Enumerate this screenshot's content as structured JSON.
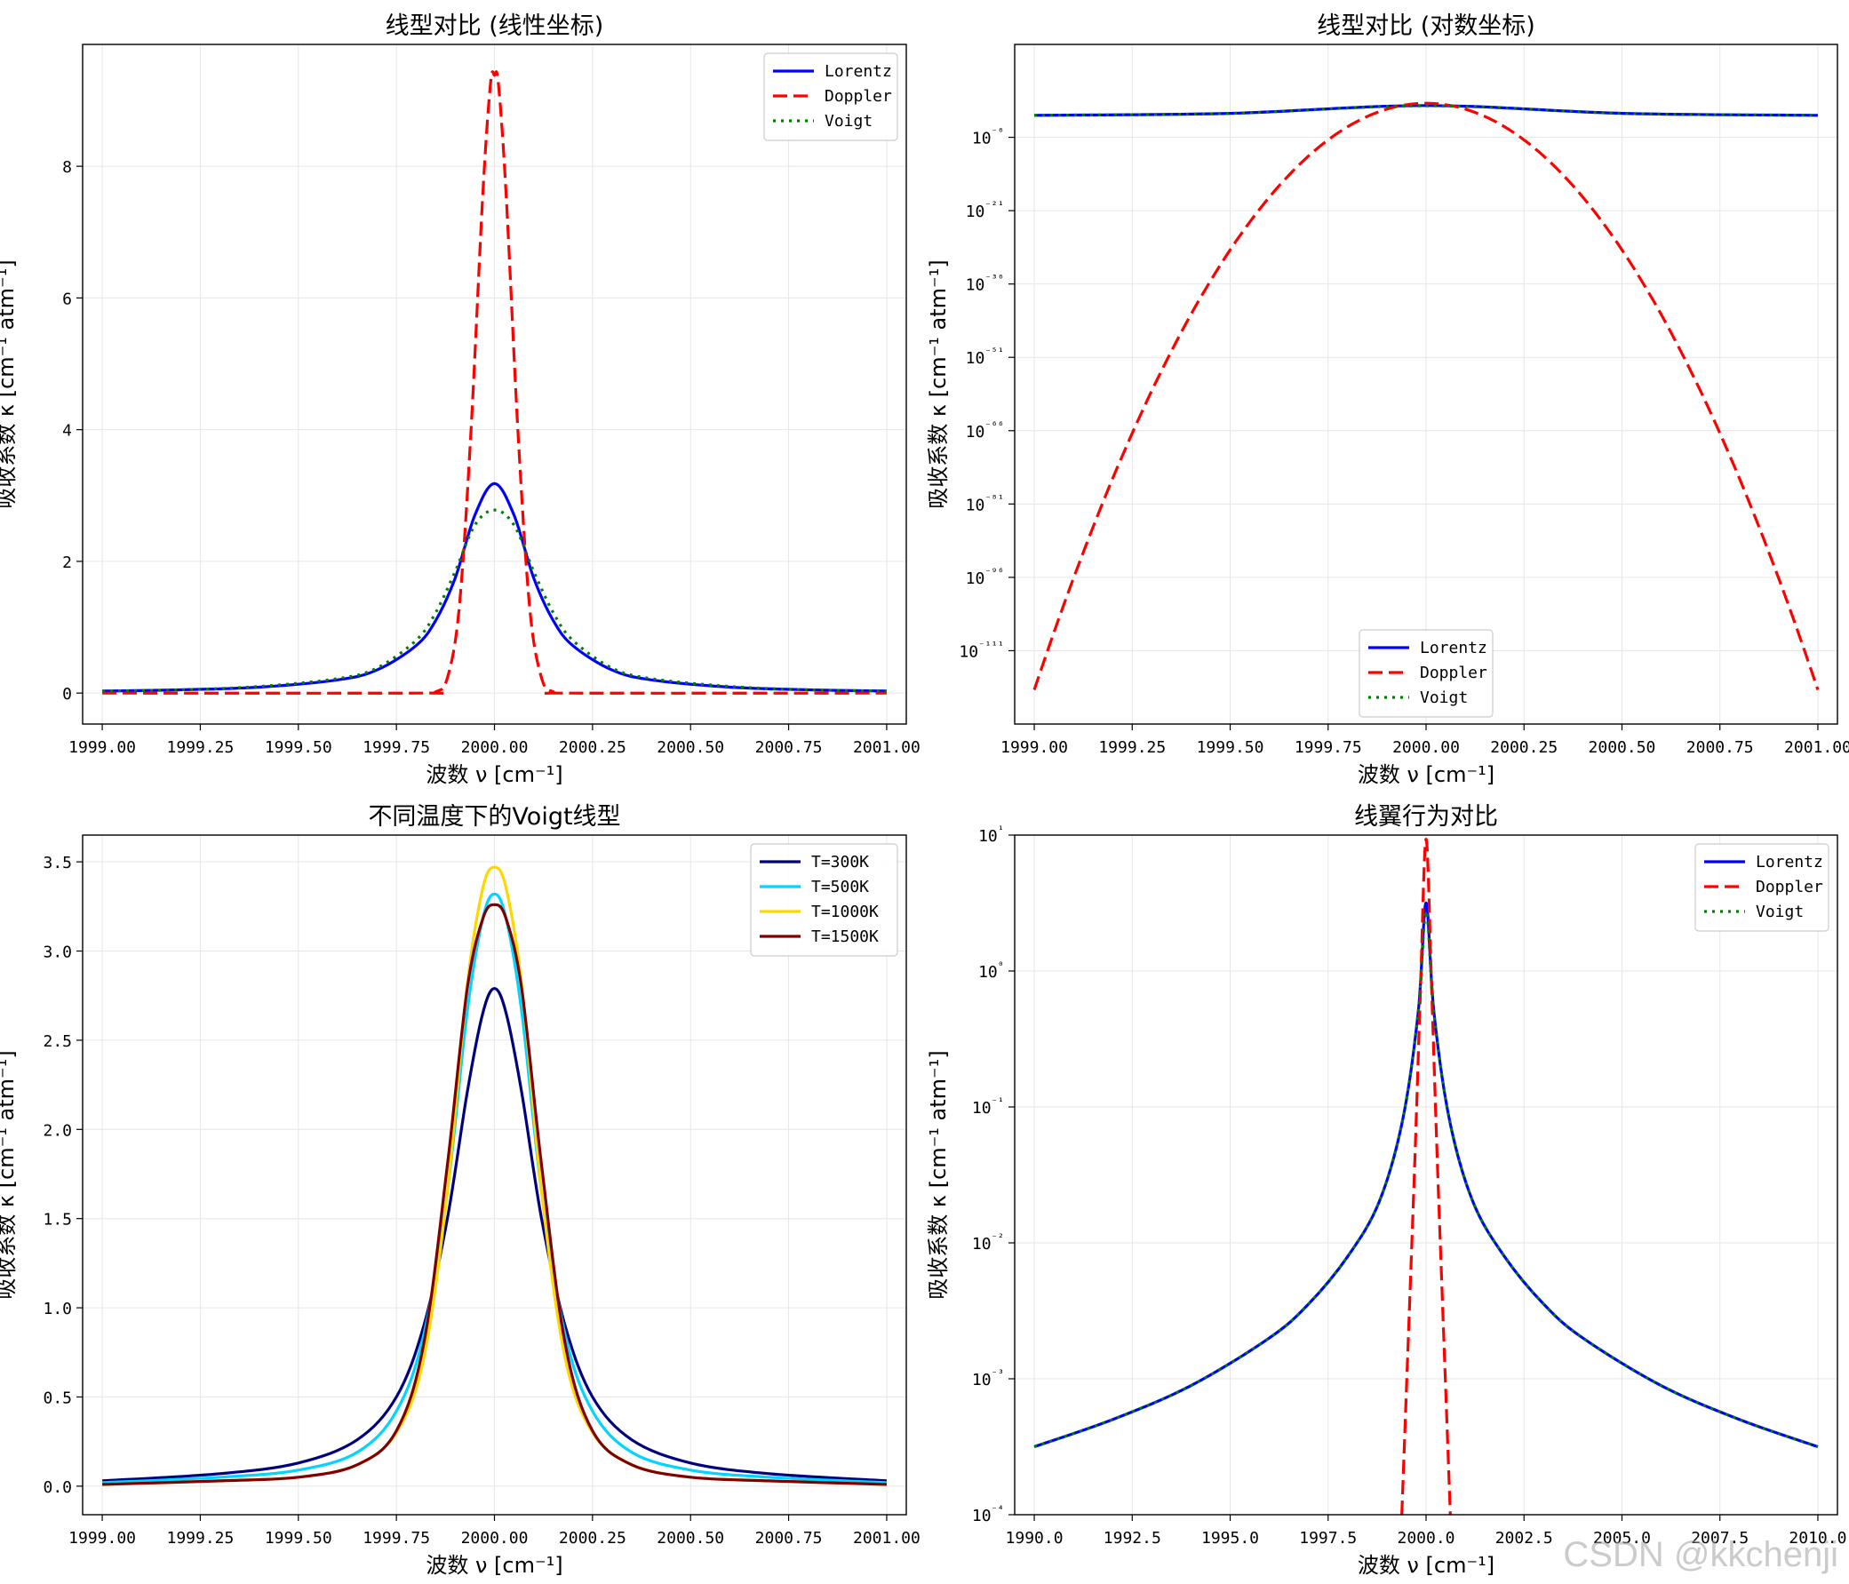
{
  "watermark": "CSDN @kkchenji",
  "colors": {
    "lorentz": "#0000ff",
    "doppler": "#ff0000",
    "voigt": "#008000",
    "T300": "#00007f",
    "T500": "#00d4ff",
    "T1000": "#ffd700",
    "T1500": "#7f0000"
  },
  "chart_data": [
    {
      "type": "line",
      "title": "线型对比 (线性坐标)",
      "xlabel": "波数 ν [cm⁻¹]",
      "ylabel": "吸收系数 κ [cm⁻¹ atm⁻¹]",
      "xlim": [
        1998.95,
        2001.05
      ],
      "ylim": [
        -0.47,
        9.85
      ],
      "yscale": "linear",
      "grid": true,
      "legend_position": "upper right",
      "xticks": [
        1999.0,
        1999.25,
        1999.5,
        1999.75,
        2000.0,
        2000.25,
        2000.5,
        2000.75,
        2001.0
      ],
      "xtick_labels": [
        "1999.00",
        "1999.25",
        "1999.50",
        "1999.75",
        "2000.00",
        "2000.25",
        "2000.50",
        "2000.75",
        "2001.00"
      ],
      "yticks": [
        0,
        2,
        4,
        6,
        8
      ],
      "ytick_labels": [
        "0",
        "2",
        "4",
        "6",
        "8"
      ],
      "series": [
        {
          "name": "Lorentz",
          "style": "solid",
          "color": "#0000ff",
          "x": [
            1999.0,
            1999.2,
            1999.4,
            1999.6,
            1999.7,
            1999.8,
            1999.85,
            1999.9,
            1999.95,
            2000.0,
            2000.05,
            2000.1,
            2000.15,
            2000.2,
            2000.3,
            2000.4,
            2000.6,
            2000.8,
            2001.0
          ],
          "y": [
            0.03,
            0.05,
            0.09,
            0.2,
            0.35,
            0.72,
            1.1,
            1.75,
            2.7,
            3.18,
            2.7,
            1.75,
            1.1,
            0.72,
            0.35,
            0.2,
            0.09,
            0.05,
            0.03
          ]
        },
        {
          "name": "Doppler",
          "style": "dashed",
          "color": "#ff0000",
          "x": [
            1999.0,
            1999.8,
            1999.85,
            1999.88,
            1999.91,
            1999.94,
            1999.97,
            1999.99,
            2000.0,
            2000.01,
            2000.03,
            2000.06,
            2000.09,
            2000.12,
            2000.15,
            2000.2,
            2001.0
          ],
          "y": [
            0,
            0,
            0.02,
            0.23,
            1.29,
            3.96,
            7.55,
            9.26,
            9.38,
            9.26,
            7.55,
            3.96,
            1.29,
            0.23,
            0.02,
            0,
            0
          ]
        },
        {
          "name": "Voigt",
          "style": "dotted",
          "color": "#008000",
          "x": [
            1999.0,
            1999.2,
            1999.4,
            1999.6,
            1999.7,
            1999.8,
            1999.85,
            1999.9,
            1999.95,
            2000.0,
            2000.05,
            2000.1,
            2000.15,
            2000.2,
            2000.3,
            2000.4,
            2000.6,
            2000.8,
            2001.0
          ],
          "y": [
            0.03,
            0.05,
            0.1,
            0.22,
            0.38,
            0.8,
            1.22,
            1.85,
            2.55,
            2.78,
            2.55,
            1.85,
            1.22,
            0.8,
            0.38,
            0.22,
            0.1,
            0.05,
            0.03
          ]
        }
      ]
    },
    {
      "type": "line",
      "title": "线型对比 (对数坐标)",
      "xlabel": "波数 ν [cm⁻¹]",
      "ylabel": "吸收系数 κ [cm⁻¹ atm⁻¹]",
      "xlim": [
        1998.95,
        2001.05
      ],
      "ylim_log10": [
        -126,
        13
      ],
      "yscale": "log",
      "grid": true,
      "legend_position": "lower center",
      "xticks": [
        1999.0,
        1999.25,
        1999.5,
        1999.75,
        2000.0,
        2000.25,
        2000.5,
        2000.75,
        2001.0
      ],
      "xtick_labels": [
        "1999.00",
        "1999.25",
        "1999.50",
        "1999.75",
        "2000.00",
        "2000.25",
        "2000.50",
        "2000.75",
        "2001.00"
      ],
      "yticks_log10": [
        -6,
        -21,
        -36,
        -51,
        -66,
        -81,
        -96,
        -111
      ],
      "ytick_bases": [
        "10",
        "10",
        "10",
        "10",
        "10",
        "10",
        "10",
        "10"
      ],
      "ytick_exps": [
        "⁻⁶",
        "⁻²¹",
        "⁻³⁶",
        "⁻⁵¹",
        "⁻⁶⁶",
        "⁻⁸¹",
        "⁻⁹⁶",
        "⁻¹¹¹"
      ],
      "series": [
        {
          "name": "Lorentz",
          "style": "solid",
          "color": "#0000ff",
          "x": [
            1999.0,
            1999.5,
            2000.0,
            2000.5,
            2001.0
          ],
          "log10_y": [
            -1.5,
            -1.1,
            0.5,
            -1.1,
            -1.5
          ]
        },
        {
          "name": "Doppler",
          "style": "parabola",
          "color": "#ff0000",
          "x": [
            1999.0,
            2000.0,
            2001.0
          ],
          "log10_y": [
            -119,
            0.97,
            -119
          ]
        },
        {
          "name": "Voigt",
          "style": "dotted",
          "color": "#008000",
          "x": [
            1999.0,
            1999.5,
            2000.0,
            2000.5,
            2001.0
          ],
          "log10_y": [
            -1.5,
            -1.1,
            0.44,
            -1.1,
            -1.5
          ]
        }
      ]
    },
    {
      "type": "line",
      "title": "不同温度下的Voigt线型",
      "xlabel": "波数 ν [cm⁻¹]",
      "ylabel": "吸收系数 κ [cm⁻¹ atm⁻¹]",
      "xlim": [
        1998.95,
        2001.05
      ],
      "ylim": [
        -0.16,
        3.65
      ],
      "yscale": "linear",
      "grid": true,
      "legend_position": "upper right",
      "xticks": [
        1999.0,
        1999.25,
        1999.5,
        1999.75,
        2000.0,
        2000.25,
        2000.5,
        2000.75,
        2001.0
      ],
      "xtick_labels": [
        "1999.00",
        "1999.25",
        "1999.50",
        "1999.75",
        "2000.00",
        "2000.25",
        "2000.50",
        "2000.75",
        "2001.00"
      ],
      "yticks": [
        0,
        0.5,
        1.0,
        1.5,
        2.0,
        2.5,
        3.0,
        3.5
      ],
      "ytick_labels": [
        "0.0",
        "0.5",
        "1.0",
        "1.5",
        "2.0",
        "2.5",
        "3.0",
        "3.5"
      ],
      "series": [
        {
          "name": "T=300K",
          "style": "solid",
          "color": "#00007f",
          "x": [
            1999.0,
            1999.3,
            1999.5,
            1999.65,
            1999.75,
            1999.82,
            1999.88,
            1999.93,
            1999.97,
            2000.0,
            2000.03,
            2000.07,
            2000.12,
            2000.18,
            2000.25,
            2000.35,
            2000.5,
            2000.7,
            2001.0
          ],
          "y": [
            0.03,
            0.07,
            0.13,
            0.26,
            0.5,
            0.9,
            1.5,
            2.2,
            2.65,
            2.79,
            2.65,
            2.2,
            1.5,
            0.9,
            0.5,
            0.26,
            0.13,
            0.07,
            0.03
          ]
        },
        {
          "name": "T=500K",
          "style": "solid",
          "color": "#00d4ff",
          "x": [
            1999.0,
            1999.3,
            1999.5,
            1999.65,
            1999.75,
            1999.82,
            1999.88,
            1999.93,
            1999.97,
            2000.0,
            2000.03,
            2000.07,
            2000.12,
            2000.18,
            2000.25,
            2000.35,
            2000.5,
            2000.7,
            2001.0
          ],
          "y": [
            0.02,
            0.05,
            0.09,
            0.19,
            0.42,
            0.85,
            1.65,
            2.65,
            3.18,
            3.32,
            3.18,
            2.65,
            1.65,
            0.85,
            0.42,
            0.19,
            0.09,
            0.05,
            0.02
          ]
        },
        {
          "name": "T=1000K",
          "style": "solid",
          "color": "#ffd700",
          "x": [
            1999.0,
            1999.3,
            1999.5,
            1999.65,
            1999.75,
            1999.82,
            1999.88,
            1999.93,
            1999.97,
            2000.0,
            2000.03,
            2000.07,
            2000.12,
            2000.18,
            2000.25,
            2000.35,
            2000.5,
            2000.7,
            2001.0
          ],
          "y": [
            0.01,
            0.03,
            0.05,
            0.12,
            0.3,
            0.72,
            1.65,
            2.8,
            3.35,
            3.47,
            3.35,
            2.8,
            1.65,
            0.72,
            0.3,
            0.12,
            0.05,
            0.03,
            0.01
          ]
        },
        {
          "name": "T=1500K",
          "style": "solid",
          "color": "#7f0000",
          "x": [
            1999.0,
            1999.3,
            1999.5,
            1999.65,
            1999.75,
            1999.82,
            1999.88,
            1999.93,
            1999.97,
            2000.0,
            2000.03,
            2000.07,
            2000.12,
            2000.18,
            2000.25,
            2000.35,
            2000.5,
            2000.7,
            2001.0
          ],
          "y": [
            0.01,
            0.03,
            0.05,
            0.12,
            0.31,
            0.8,
            1.8,
            2.78,
            3.18,
            3.26,
            3.18,
            2.78,
            1.8,
            0.8,
            0.31,
            0.12,
            0.05,
            0.03,
            0.01
          ]
        }
      ]
    },
    {
      "type": "line",
      "title": "线翼行为对比",
      "xlabel": "波数 ν [cm⁻¹]",
      "ylabel": "吸收系数 κ [cm⁻¹ atm⁻¹]",
      "xlim": [
        1989.5,
        2010.5
      ],
      "ylim_log10": [
        -4,
        1
      ],
      "yscale": "log",
      "grid": true,
      "legend_position": "upper right",
      "xticks": [
        1990.0,
        1992.5,
        1995.0,
        1997.5,
        2000.0,
        2002.5,
        2005.0,
        2007.5,
        2010.0
      ],
      "xtick_labels": [
        "1990.0",
        "1992.5",
        "1995.0",
        "1997.5",
        "2000.0",
        "2002.5",
        "2005.0",
        "2007.5",
        "2010.0"
      ],
      "yticks_log10": [
        1,
        0,
        -1,
        -2,
        -3,
        -4
      ],
      "ytick_bases": [
        "10",
        "10",
        "10",
        "10",
        "10",
        "10"
      ],
      "ytick_exps": [
        "¹",
        "⁰",
        "⁻¹",
        "⁻²",
        "⁻³",
        "⁻⁴"
      ],
      "series": [
        {
          "name": "Lorentz",
          "style": "solid",
          "color": "#0000ff",
          "x": [
            1990,
            1992,
            1994,
            1996,
            1997,
            1998,
            1998.8,
            1999.4,
            1999.8,
            2000,
            2000.2,
            2000.6,
            2001.2,
            2002,
            2003,
            2004,
            2006,
            2008,
            2010
          ],
          "log10_y": [
            -3.5,
            -3.3,
            -3.05,
            -2.7,
            -2.45,
            -2.1,
            -1.7,
            -1.1,
            -0.3,
            0.5,
            -0.3,
            -1.1,
            -1.7,
            -2.1,
            -2.45,
            -2.7,
            -3.05,
            -3.3,
            -3.5
          ]
        },
        {
          "name": "Doppler",
          "style": "dashed",
          "color": "#ff0000",
          "x": [
            1999.38,
            1999.7,
            1999.85,
            2000,
            2000.15,
            2000.3,
            2000.62
          ],
          "log10_y": [
            -4,
            -1.5,
            -0.2,
            0.97,
            -0.2,
            -1.5,
            -4
          ]
        },
        {
          "name": "Voigt",
          "style": "dotted",
          "color": "#008000",
          "x": [
            1990,
            1992,
            1994,
            1996,
            1997,
            1998,
            1998.8,
            1999.4,
            1999.8,
            2000,
            2000.2,
            2000.6,
            2001.2,
            2002,
            2003,
            2004,
            2006,
            2008,
            2010
          ],
          "log10_y": [
            -3.5,
            -3.3,
            -3.05,
            -2.7,
            -2.45,
            -2.1,
            -1.7,
            -1.1,
            -0.3,
            0.44,
            -0.3,
            -1.1,
            -1.7,
            -2.1,
            -2.45,
            -2.7,
            -3.05,
            -3.3,
            -3.5
          ]
        }
      ]
    }
  ]
}
